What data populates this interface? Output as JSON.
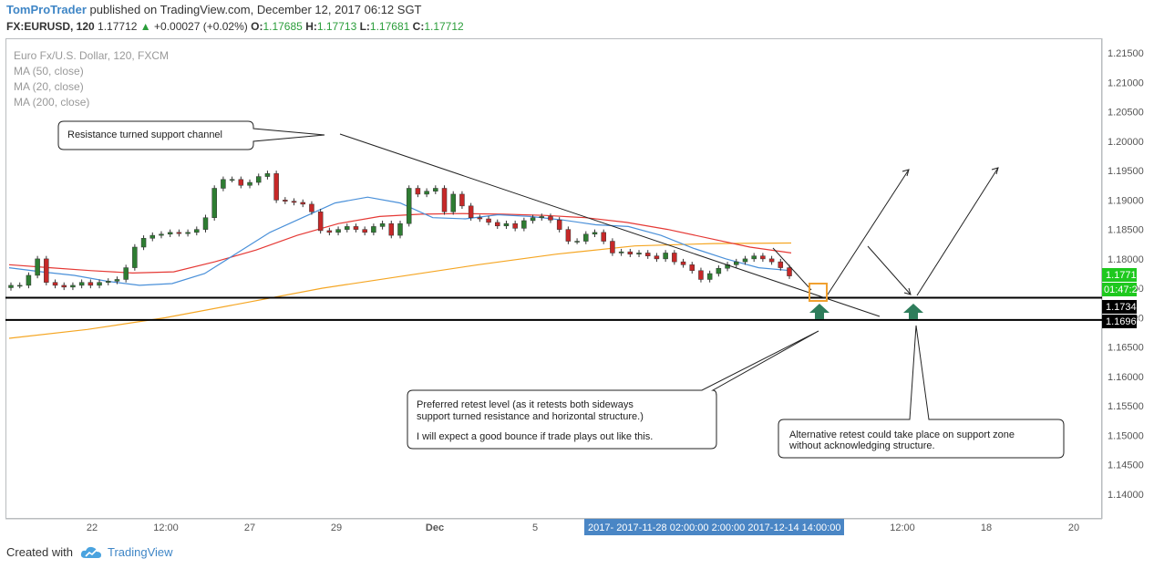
{
  "header": {
    "author": "TomProTrader",
    "published": "published on TradingView.com, December 12, 2017 06:12 SGT",
    "symbol": "FX:EURUSD, 120",
    "last": "1.17712",
    "arrow": "▲",
    "change": "+0.00027 (+0.02%)",
    "o_label": "O:",
    "o_val": "1.17685",
    "h_label": "H:",
    "h_val": "1.17713",
    "l_label": "L:",
    "l_val": "1.17681",
    "c_label": "C:",
    "c_val": "1.17712"
  },
  "legend": {
    "title": "Euro Fx/U.S. Dollar, 120, FXCM",
    "ma1": "MA (50, close)",
    "ma2": "MA (20, close)",
    "ma3": "MA (200, close)"
  },
  "annotations": {
    "channel": "Resistance turned support channel",
    "preferred_1": "Preferred retest level (as it retests both sideways",
    "preferred_2": "support turned resistance and horizontal structure.)",
    "preferred_3": "I will expect a good bounce if trade plays out like this.",
    "alternative_1": "Alternative retest could take place on support zone",
    "alternative_2": "without acknowledging structure."
  },
  "price_tags": {
    "last": "1.17712",
    "countdown": "01:47:22",
    "level1": "1.17340",
    "level2": "1.16962"
  },
  "time_axis_highlight": "2017- 2017-11-28 02:00:00  2:00:00  2017-12-14 14:00:00",
  "footer": {
    "created_with": "Created with",
    "brand": "TradingView"
  },
  "colors": {
    "up": "#2e7d32",
    "down": "#c62828",
    "ma20": "#4a90d9",
    "ma50": "#e53935",
    "ma200": "#f5a623",
    "arrow_green": "#2e7d5b",
    "highlight_box": "#f0a030",
    "last_price_bg": "#1ec81e",
    "axis_highlight_bg": "#4a86c5"
  },
  "chart_data": {
    "type": "candlestick",
    "symbol": "EURUSD",
    "interval": "120",
    "ylim": [
      1.1358,
      1.2175
    ],
    "y_ticks": [
      1.215,
      1.21,
      1.205,
      1.2,
      1.195,
      1.19,
      1.185,
      1.18,
      1.175,
      1.17,
      1.165,
      1.16,
      1.155,
      1.15,
      1.145,
      1.14
    ],
    "x_ticks": [
      "22",
      "12:00",
      "27",
      "29",
      "Dec",
      "5",
      "12:00",
      "18",
      "20"
    ],
    "close_series": [
      1.1755,
      1.1755,
      1.1772,
      1.18,
      1.176,
      1.1755,
      1.1752,
      1.1755,
      1.176,
      1.1755,
      1.176,
      1.1762,
      1.1765,
      1.1785,
      1.182,
      1.1835,
      1.184,
      1.1842,
      1.1845,
      1.1843,
      1.1845,
      1.185,
      1.187,
      1.192,
      1.1935,
      1.1935,
      1.1925,
      1.193,
      1.194,
      1.1945,
      1.19,
      1.1898,
      1.1896,
      1.1893,
      1.188,
      1.1848,
      1.1845,
      1.185,
      1.1855,
      1.185,
      1.1845,
      1.1855,
      1.186,
      1.184,
      1.186,
      1.192,
      1.191,
      1.1915,
      1.192,
      1.188,
      1.191,
      1.189,
      1.187,
      1.1868,
      1.1862,
      1.1856,
      1.186,
      1.1852,
      1.1865,
      1.187,
      1.1872,
      1.1866,
      1.185,
      1.183,
      1.183,
      1.1842,
      1.1845,
      1.183,
      1.181,
      1.1812,
      1.1808,
      1.181,
      1.1805,
      1.18,
      1.181,
      1.1795,
      1.179,
      1.178,
      1.1765,
      1.1775,
      1.1784,
      1.179,
      1.1795,
      1.18,
      1.1805,
      1.18,
      1.1795,
      1.1785,
      1.1771
    ],
    "ma20": [
      1.1785,
      1.1778,
      1.1772,
      1.1762,
      1.1755,
      1.1758,
      1.1775,
      1.181,
      1.1845,
      1.187,
      1.1895,
      1.1905,
      1.1895,
      1.187,
      1.1868,
      1.1875,
      1.1872,
      1.1866,
      1.1858,
      1.1855,
      1.184,
      1.1818,
      1.18,
      1.1785,
      1.178
    ],
    "ma50": [
      1.179,
      1.1785,
      1.178,
      1.1776,
      1.1778,
      1.1795,
      1.1815,
      1.184,
      1.186,
      1.1872,
      1.1876,
      1.1877,
      1.1876,
      1.1874,
      1.187,
      1.1862,
      1.185,
      1.1835,
      1.182,
      1.181
    ],
    "ma200": [
      1.1665,
      1.168,
      1.17,
      1.1725,
      1.175,
      1.177,
      1.179,
      1.1808,
      1.1822,
      1.1826,
      1.1827
    ],
    "horizontal_levels": [
      1.1734,
      1.16962
    ],
    "last_price": 1.17712
  }
}
